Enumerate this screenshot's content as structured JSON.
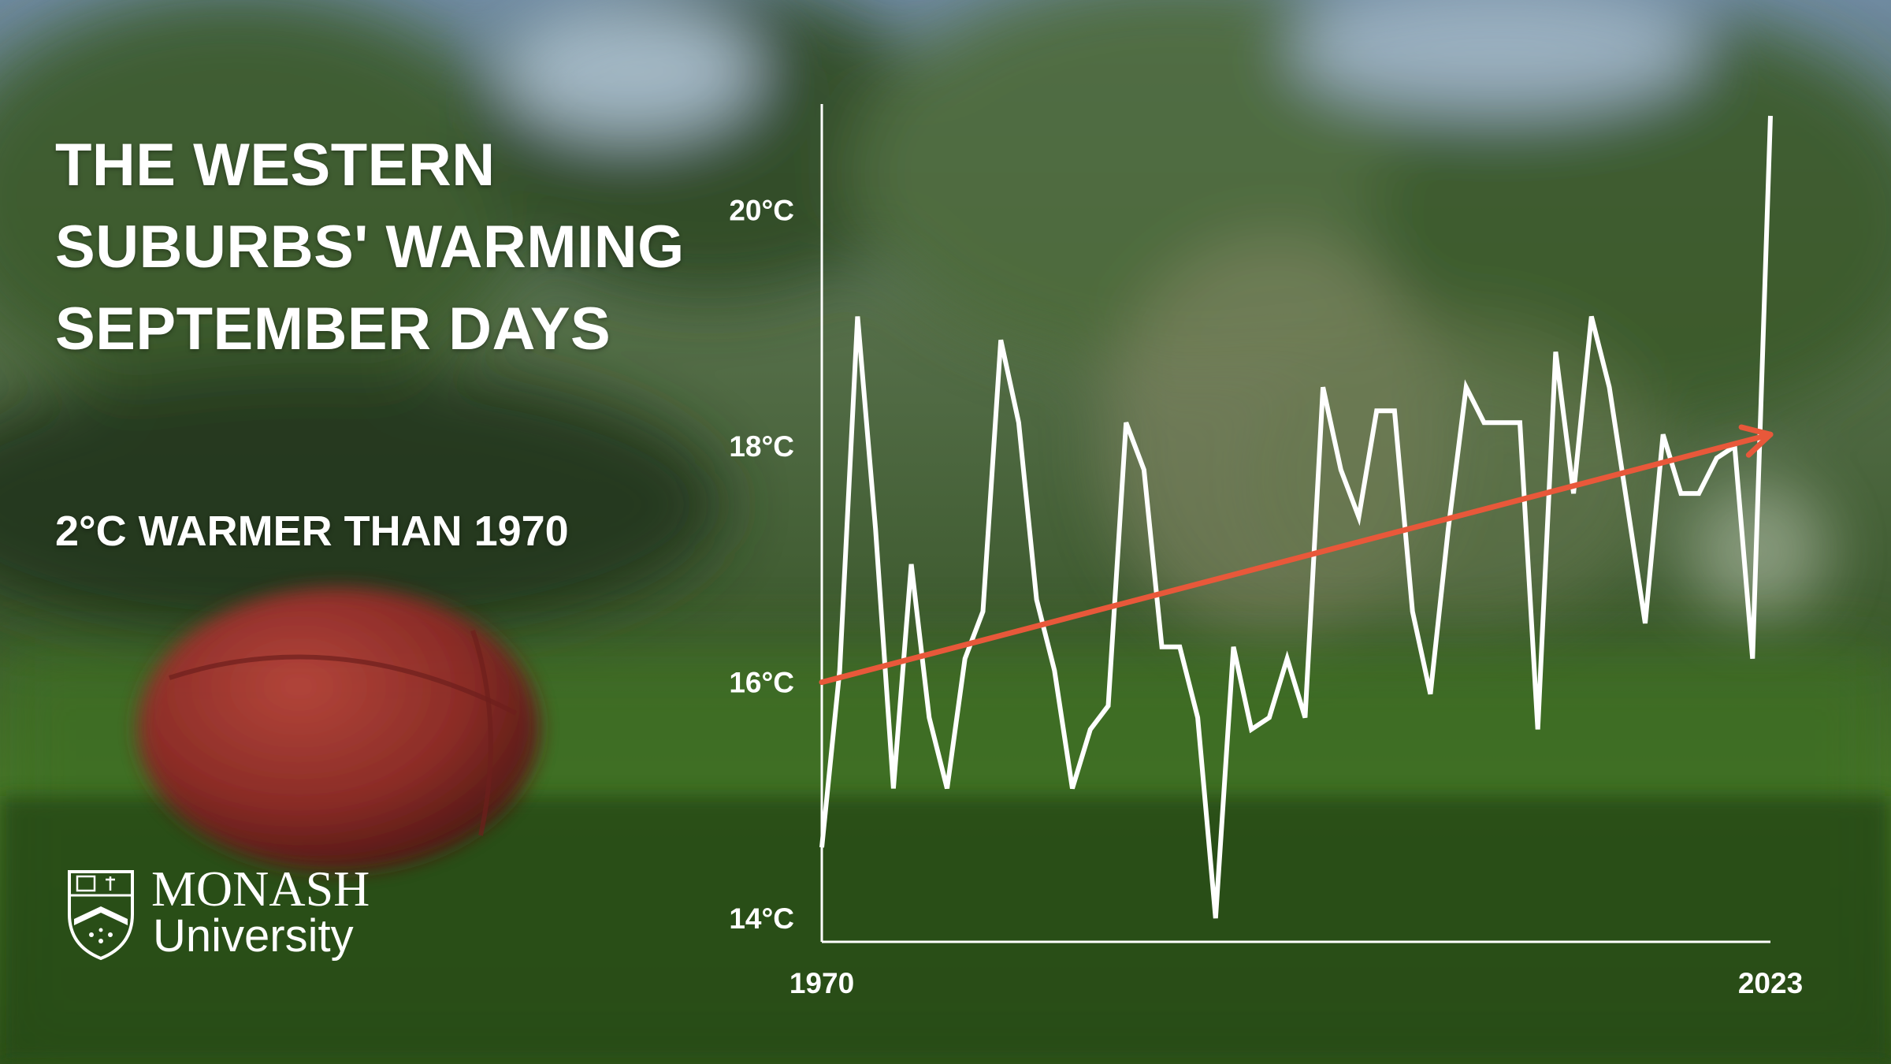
{
  "title_lines": [
    "THE WESTERN",
    "SUBURBS' WARMING",
    "SEPTEMBER DAYS"
  ],
  "subtitle": "2°C WARMER THAN 1970",
  "logo": {
    "name": "MONASH",
    "sub": "University"
  },
  "colors": {
    "line": "#ffffff",
    "trend": "#e8583a",
    "sky": "#8fa5b8",
    "foliage": "#3c5a2c",
    "grass": "#2f5a1c",
    "ball": "#9a2f2c"
  },
  "chart_data": {
    "type": "line",
    "x_range": [
      1970,
      2023
    ],
    "ylim": [
      13.8,
      20.9
    ],
    "grid": false,
    "y_ticks": [
      14,
      16,
      18,
      20
    ],
    "y_tick_labels": [
      "14°C",
      "16°C",
      "18°C",
      "20°C"
    ],
    "x_tick_labels": [
      "1970",
      "2023"
    ],
    "x_ticks": [
      1970,
      2023
    ],
    "x": [
      1970,
      1971,
      1972,
      1973,
      1974,
      1975,
      1976,
      1977,
      1978,
      1979,
      1980,
      1981,
      1982,
      1983,
      1984,
      1985,
      1986,
      1987,
      1988,
      1989,
      1990,
      1991,
      1992,
      1993,
      1994,
      1995,
      1996,
      1997,
      1998,
      1999,
      2000,
      2001,
      2002,
      2003,
      2004,
      2005,
      2006,
      2007,
      2008,
      2009,
      2010,
      2011,
      2012,
      2013,
      2014,
      2015,
      2016,
      2017,
      2018,
      2019,
      2020,
      2021,
      2022,
      2023
    ],
    "series": [
      {
        "values": [
          14.6,
          16.1,
          19.1,
          17.3,
          15.1,
          17.0,
          15.7,
          15.1,
          16.2,
          16.6,
          18.9,
          18.2,
          16.7,
          16.1,
          15.1,
          15.6,
          15.8,
          18.2,
          17.8,
          16.3,
          16.3,
          15.7,
          14.0,
          16.3,
          15.6,
          15.7,
          16.2,
          15.7,
          18.5,
          17.8,
          17.4,
          18.3,
          18.3,
          16.6,
          15.9,
          17.3,
          18.5,
          18.2,
          18.2,
          18.2,
          15.6,
          18.8,
          17.6,
          19.1,
          18.5,
          17.5,
          16.5,
          18.1,
          17.6,
          17.6,
          17.9,
          18.0,
          16.2,
          20.8
        ]
      }
    ],
    "trend": {
      "x": [
        1970,
        2023
      ],
      "values": [
        16.0,
        18.1
      ]
    }
  }
}
